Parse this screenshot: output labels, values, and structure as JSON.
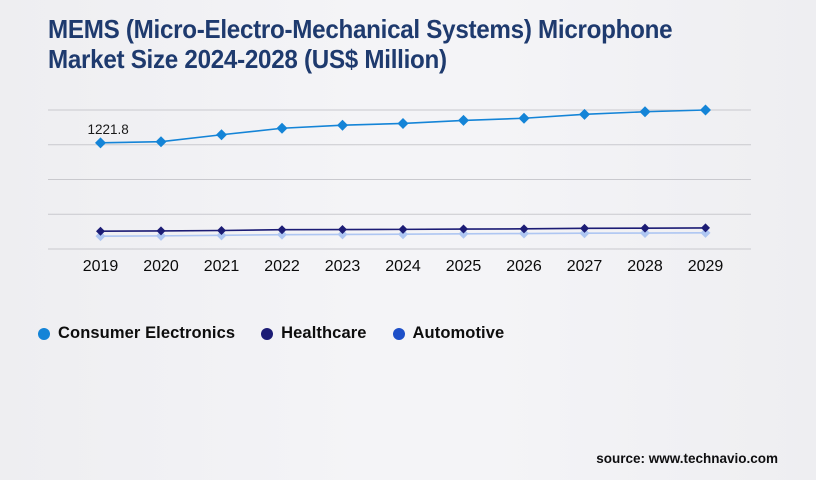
{
  "title": {
    "line1": "MEMS (Micro-Electro-Mechanical Systems) Microphone",
    "line2": "Market Size 2024-2028 (US$ Million)",
    "color": "#1e3a6e"
  },
  "chart_data": {
    "type": "line",
    "title": "MEMS (Micro-Electro-Mechanical Systems) Microphone Market Size 2024-2028 (US$ Million)",
    "categories": [
      "2019",
      "2020",
      "2021",
      "2022",
      "2023",
      "2024",
      "2025",
      "2026",
      "2027",
      "2028",
      "2029"
    ],
    "series": [
      {
        "name": "Consumer Electronics",
        "legend_color": "#1484d7",
        "line_color": "#1484d7",
        "marker": "diamond",
        "marker_size": 5.5,
        "values": [
          1221.8,
          1235,
          1315,
          1390,
          1425,
          1445,
          1480,
          1505,
          1550,
          1580,
          1600
        ]
      },
      {
        "name": "Healthcare",
        "legend_color": "#1c1c75",
        "line_color": "#1c1c75",
        "marker": "diamond",
        "marker_size": 4.5,
        "values": [
          205,
          208,
          213,
          222,
          224,
          226,
          230,
          232,
          238,
          240,
          243
        ]
      },
      {
        "name": "Automotive",
        "legend_color": "#1d4fc8",
        "line_color": "#aec6f2",
        "marker": "diamond",
        "marker_size": 5,
        "values": [
          148,
          151,
          157,
          165,
          168,
          170,
          175,
          178,
          182,
          184,
          186
        ]
      }
    ],
    "data_labels": [
      {
        "series_index": 0,
        "point_index": 0,
        "text": "1221.8"
      }
    ],
    "xlabel": "",
    "ylabel": "",
    "ylim": [
      0,
      1600
    ],
    "y_grid_step": 400,
    "grid": "horizontal-only",
    "gridline_color": "#c9c9ce",
    "legend_position": "bottom"
  },
  "legend": {
    "items": [
      {
        "label": "Consumer Electronics",
        "color": "#1484d7"
      },
      {
        "label": "Healthcare",
        "color": "#1c1c75"
      },
      {
        "label": "Automotive",
        "color": "#1d4fc8"
      }
    ]
  },
  "footer": {
    "source_text": "source: www.technavio.com"
  }
}
